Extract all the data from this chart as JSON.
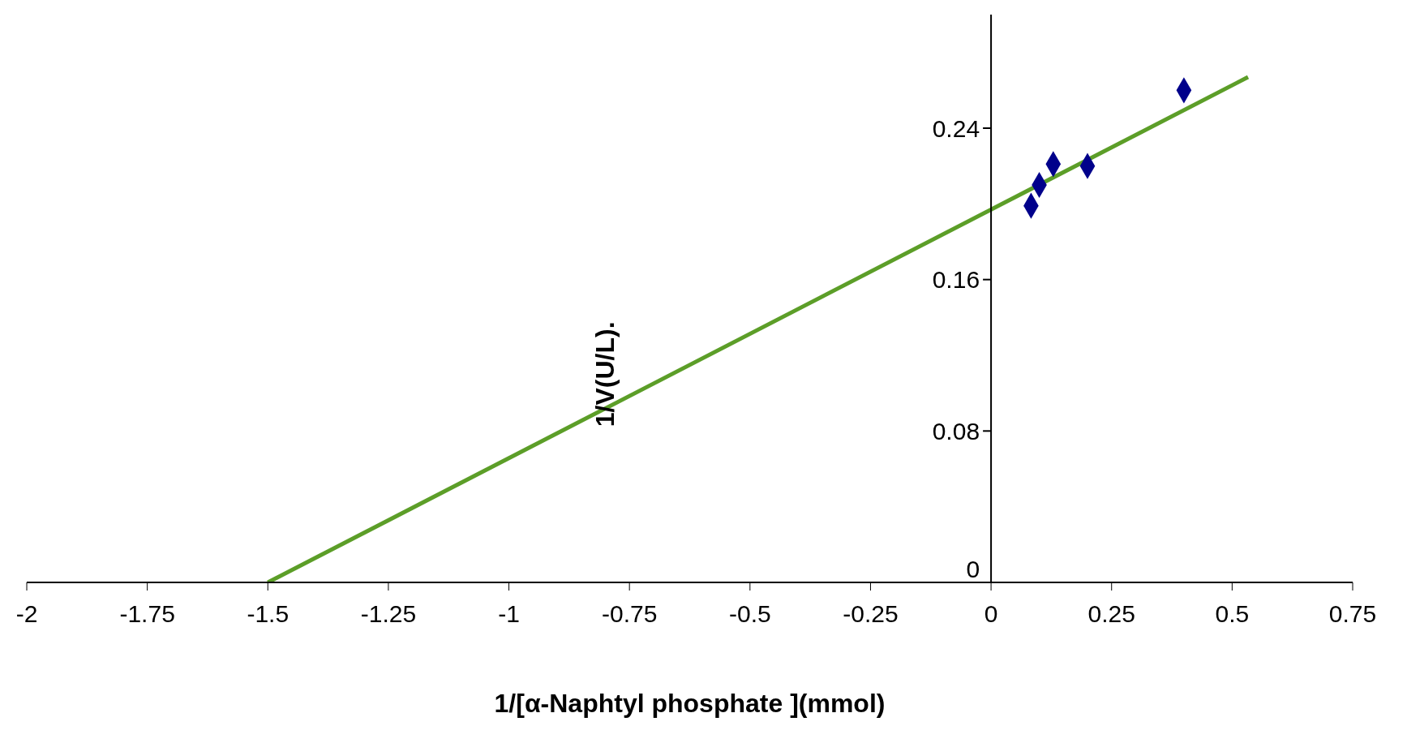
{
  "chart_data": {
    "type": "scatter",
    "xlabel": "1/[α-Naphtyl phosphate ](mmol)",
    "ylabel": "1/V(U/L).",
    "x": [
      0.083,
      0.1,
      0.129,
      0.2,
      0.4
    ],
    "values": [
      0.199,
      0.21,
      0.221,
      0.22,
      0.26
    ],
    "color": "#00008b",
    "marker": "diamond",
    "series": [
      {
        "type": "line",
        "x": [
          -1.5,
          0.533
        ],
        "values": [
          0,
          0.267
        ],
        "color": "#5c9e28",
        "line_style": "solid",
        "marker": "none"
      }
    ],
    "xlim": [
      -2,
      0.75
    ],
    "xticks": [
      -2,
      -1.75,
      -1.5,
      -1.25,
      -1,
      -0.75,
      -0.5,
      -0.25,
      0,
      0.25,
      0.5,
      0.75
    ],
    "ylim": [
      0,
      0.3
    ],
    "yticks": [
      0,
      0.08,
      0.16,
      0.24
    ],
    "grid": false,
    "legend": false
  }
}
